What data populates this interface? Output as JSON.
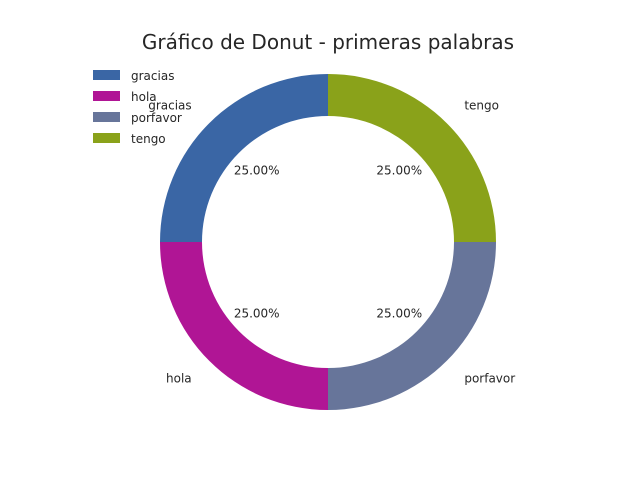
{
  "chart_data": {
    "type": "pie",
    "title": "Gráfico de Donut - primeras palabras",
    "categories": [
      "gracias",
      "hola",
      "porfavor",
      "tengo"
    ],
    "values": [
      25,
      25,
      25,
      25
    ],
    "percent_labels": [
      "25.00%",
      "25.00%",
      "25.00%",
      "25.00%"
    ],
    "colors": [
      "#3a66a5",
      "#b01595",
      "#67759a",
      "#8aa21a"
    ],
    "donut": true,
    "legend_position": "upper-left"
  }
}
